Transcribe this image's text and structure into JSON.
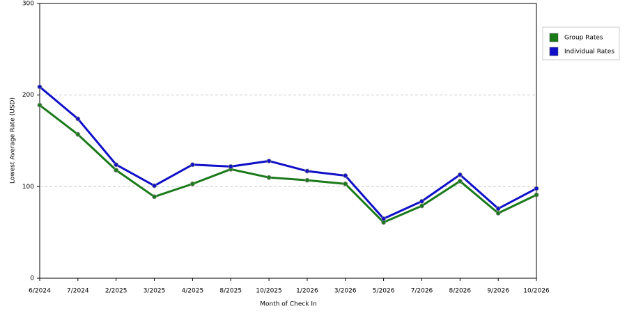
{
  "chart_data": {
    "type": "line",
    "x_label": "Month of Check In",
    "y_label": "Lowest Average Rate (USD)",
    "categories": [
      "6/2024",
      "7/2024",
      "2/2025",
      "3/2025",
      "4/2025",
      "8/2025",
      "10/2025",
      "1/2026",
      "3/2026",
      "5/2026",
      "7/2026",
      "8/2026",
      "9/2026",
      "10/2026"
    ],
    "series": [
      {
        "name": "Group Rates",
        "color": "#1a7a1a",
        "values": [
          189,
          157,
          118,
          89,
          103,
          119,
          110,
          107,
          103,
          61,
          79,
          106,
          71,
          91
        ]
      },
      {
        "name": "Individual Rates",
        "color": "#1010c8",
        "values": [
          209,
          174,
          124,
          101,
          124,
          122,
          128,
          117,
          112,
          65,
          84,
          113,
          76,
          98
        ]
      }
    ],
    "ylim": [
      0,
      300
    ],
    "yticks": [
      0,
      100,
      200,
      300
    ],
    "grid": true,
    "legend": "right"
  }
}
